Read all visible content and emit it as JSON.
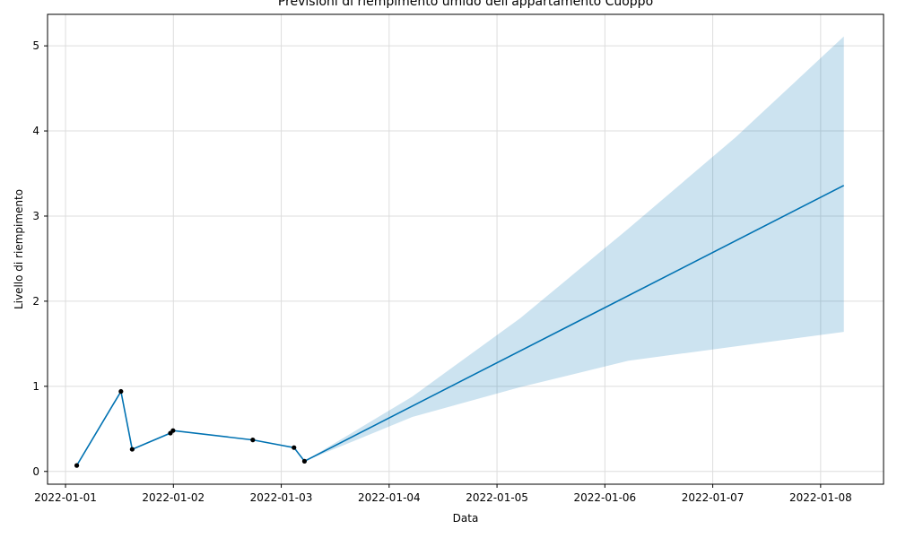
{
  "chart_data": {
    "type": "line",
    "title": "Previsioni di riempimento umido dell'appartamento Cuoppo",
    "xlabel": "Data",
    "ylabel": "Livello di riempimento",
    "x_range": [
      "2022-01-00 20:00",
      "2022-01-08 14:00"
    ],
    "ylim": [
      -0.15,
      5.37
    ],
    "grid": true,
    "colors": {
      "forecast_line": "#0072B2",
      "confidence_band": "#0072B2",
      "observations": "#000000",
      "grid": "#dddddd"
    },
    "x_ticks": [
      "2022-01-01",
      "2022-01-02",
      "2022-01-03",
      "2022-01-04",
      "2022-01-05",
      "2022-01-06",
      "2022-01-07",
      "2022-01-08"
    ],
    "y_ticks": [
      0,
      1,
      2,
      3,
      4,
      5
    ],
    "observations": [
      {
        "x": "2022-01-01 02:30",
        "y": 0.07
      },
      {
        "x": "2022-01-01 12:20",
        "y": 0.94
      },
      {
        "x": "2022-01-01 14:50",
        "y": 0.26
      },
      {
        "x": "2022-01-01 23:20",
        "y": 0.45
      },
      {
        "x": "2022-01-01 23:55",
        "y": 0.48
      },
      {
        "x": "2022-01-02 17:40",
        "y": 0.37
      },
      {
        "x": "2022-01-03 02:50",
        "y": 0.28
      },
      {
        "x": "2022-01-03 05:10",
        "y": 0.12
      }
    ],
    "forecast": [
      {
        "x": "2022-01-01 02:30",
        "y": 0.07
      },
      {
        "x": "2022-01-01 12:20",
        "y": 0.94
      },
      {
        "x": "2022-01-01 14:50",
        "y": 0.26
      },
      {
        "x": "2022-01-01 23:20",
        "y": 0.45
      },
      {
        "x": "2022-01-01 23:55",
        "y": 0.48
      },
      {
        "x": "2022-01-02 17:40",
        "y": 0.37
      },
      {
        "x": "2022-01-03 02:50",
        "y": 0.28
      },
      {
        "x": "2022-01-03 05:10",
        "y": 0.12
      },
      {
        "x": "2022-01-08 05:10",
        "y": 3.36
      }
    ],
    "confidence_band": {
      "x": [
        "2022-01-03 05:10",
        "2022-01-04 05:10",
        "2022-01-05 05:10",
        "2022-01-06 05:10",
        "2022-01-07 05:10",
        "2022-01-08 05:10"
      ],
      "upper": [
        0.12,
        0.88,
        1.8,
        2.85,
        3.93,
        5.11
      ],
      "lower": [
        0.12,
        0.64,
        0.99,
        1.3,
        1.47,
        1.64
      ]
    }
  }
}
